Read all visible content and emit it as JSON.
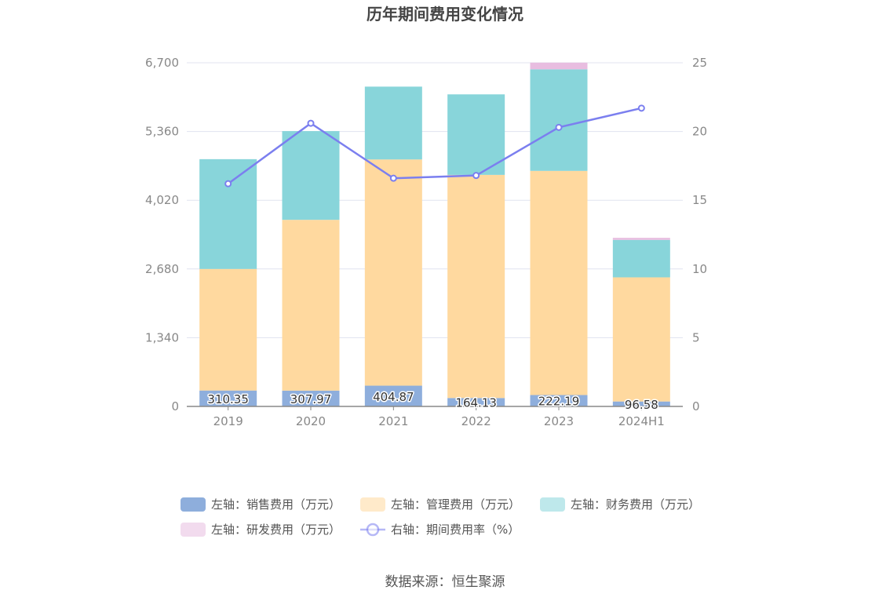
{
  "chart_data": {
    "type": "bar",
    "title": "历年期间费用变化情况",
    "categories": [
      "2019",
      "2020",
      "2021",
      "2022",
      "2023",
      "2024H1"
    ],
    "stacked": true,
    "series": [
      {
        "name": "左轴：销售费用（万元）",
        "axis": "left",
        "type": "bar",
        "color": "#8eaedc",
        "values": [
          310.35,
          307.97,
          404.87,
          164.13,
          222.19,
          96.58
        ],
        "labels": [
          "310.35",
          "307.97",
          "404.87",
          "164.13",
          "222.19",
          "96.58"
        ]
      },
      {
        "name": "左轴：管理费用（万元）",
        "axis": "left",
        "type": "bar",
        "color": "#ffd99f",
        "values": [
          2370,
          3330,
          4410,
          4350,
          4370,
          2420
        ]
      },
      {
        "name": "左轴：财务费用（万元）",
        "axis": "left",
        "type": "bar",
        "color": "#88d5da",
        "values": [
          2140,
          1730,
          1420,
          1570,
          1980,
          730
        ]
      },
      {
        "name": "左轴：研发费用（万元）",
        "axis": "left",
        "type": "bar",
        "color": "#e8bde0",
        "values": [
          0,
          0,
          0,
          0,
          130,
          40
        ]
      },
      {
        "name": "右轴：期间费用率（%）",
        "axis": "right",
        "type": "line",
        "color": "#7b7fef",
        "values": [
          16.2,
          20.6,
          16.6,
          16.8,
          20.3,
          21.7
        ]
      }
    ],
    "yAxisLeft": {
      "min": 0,
      "max": 6700,
      "ticks": [
        "0",
        "1,340",
        "2,680",
        "4,020",
        "5,360",
        "6,700"
      ]
    },
    "yAxisRight": {
      "min": 0,
      "max": 25,
      "ticks": [
        "0",
        "5",
        "10",
        "15",
        "20",
        "25"
      ]
    },
    "grid": true,
    "legend_position": "bottom"
  },
  "source": "数据来源：恒生聚源"
}
